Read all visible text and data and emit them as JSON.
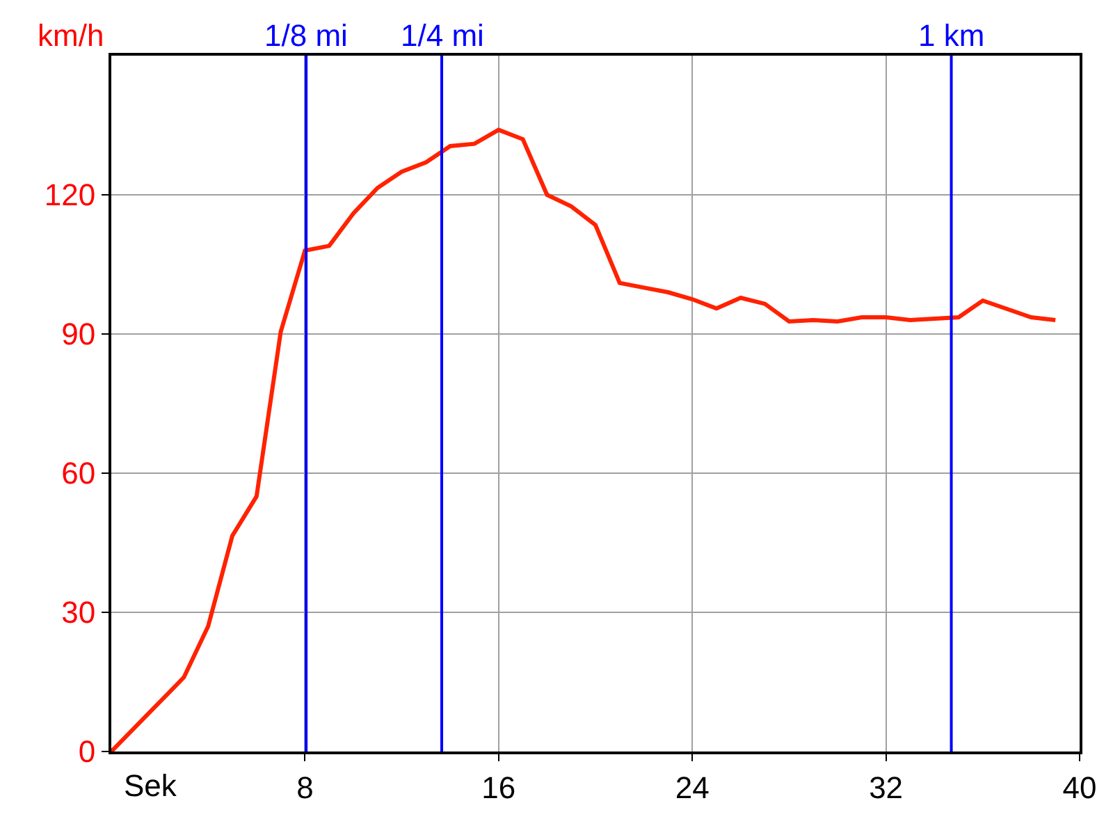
{
  "chart_data": {
    "type": "line",
    "xlabel": "Sek",
    "ylabel": "km/h",
    "x": [
      0,
      3,
      4,
      5,
      6,
      7,
      8,
      9,
      10,
      11,
      12,
      13,
      14,
      15,
      16,
      17,
      18,
      19,
      20,
      21,
      22,
      23,
      24,
      25,
      26,
      27,
      28,
      29,
      30,
      31,
      32,
      33,
      34,
      35,
      36,
      37,
      38,
      39
    ],
    "series": [
      {
        "color": "#ff2200",
        "values": [
          0,
          16,
          27,
          46.5,
          55,
          90.5,
          108,
          109,
          116,
          121.5,
          125,
          127,
          130.5,
          131,
          134,
          132,
          120,
          117.5,
          113.5,
          101,
          100,
          99,
          97.5,
          95.5,
          97.8,
          96.5,
          92.7,
          93,
          92.7,
          93.6,
          93.6,
          93,
          93.3,
          93.6,
          97.2,
          95.4,
          93.6,
          93
        ]
      }
    ],
    "xlim": [
      0,
      40
    ],
    "xticks": [
      8,
      16,
      24,
      32,
      40
    ],
    "ylim": [
      0,
      150
    ],
    "yticks": [
      0,
      30,
      60,
      90,
      120
    ],
    "grid": true,
    "marker": "none",
    "line_style": "solid",
    "ref_lines": [
      {
        "axis": "x",
        "value": 8.05,
        "label": "1/8 mi",
        "color": "#0000ff"
      },
      {
        "axis": "x",
        "value": 13.65,
        "label": "1/4 mi",
        "color": "#0000ff"
      },
      {
        "axis": "x",
        "value": 34.7,
        "label": "1 km",
        "color": "#0000ff"
      }
    ]
  }
}
